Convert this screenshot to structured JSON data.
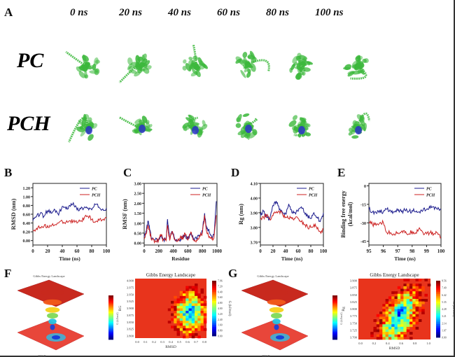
{
  "figure": {
    "panel_labels": {
      "A": "A",
      "B": "B",
      "C": "C",
      "D": "D",
      "E": "E",
      "F": "F",
      "G": "G"
    },
    "time_points": [
      "0 ns",
      "20 ns",
      "40 ns",
      "60 ns",
      "80 ns",
      "100 ns"
    ],
    "rows": [
      "PC",
      "PCH"
    ],
    "colors": {
      "pc": "#1a1a8c",
      "pch": "#cc2222",
      "protein": "#3cb83c",
      "ligand": "#2a2ad0",
      "heat_bg": "#e8341c"
    }
  },
  "chart_data": [
    {
      "id": "B",
      "type": "line",
      "title": "",
      "xlabel": "Time (ns)",
      "ylabel": "RMSD (nm)",
      "xlim": [
        0,
        100
      ],
      "ylim": [
        -0.1,
        1.3
      ],
      "xticks": [
        0,
        20,
        40,
        60,
        80,
        100
      ],
      "yticks": [
        "0.00",
        "0.20",
        "0.40",
        "0.60",
        "0.80",
        "1.00",
        "1.20"
      ],
      "legend": [
        "PC",
        "PCH"
      ],
      "legend_position": "top-right",
      "x": [
        0,
        5,
        10,
        15,
        20,
        25,
        30,
        35,
        40,
        45,
        50,
        55,
        60,
        65,
        70,
        75,
        80,
        85,
        90,
        95,
        100
      ],
      "series": [
        {
          "name": "PC",
          "values": [
            0.45,
            0.55,
            0.62,
            0.55,
            0.68,
            0.62,
            0.7,
            0.58,
            0.78,
            0.72,
            0.8,
            0.86,
            0.7,
            0.72,
            0.76,
            0.74,
            0.7,
            0.82,
            0.76,
            0.72,
            0.74
          ]
        },
        {
          "name": "PCH",
          "values": [
            0.22,
            0.28,
            0.3,
            0.32,
            0.34,
            0.33,
            0.36,
            0.4,
            0.44,
            0.42,
            0.45,
            0.44,
            0.4,
            0.45,
            0.52,
            0.55,
            0.48,
            0.42,
            0.46,
            0.48,
            0.52
          ]
        }
      ]
    },
    {
      "id": "C",
      "type": "line",
      "title": "",
      "xlabel": "Residue",
      "ylabel": "RMSF (nm)",
      "xlim": [
        0,
        1000
      ],
      "ylim": [
        -0.1,
        3.0
      ],
      "xticks": [
        0,
        200,
        400,
        600,
        800,
        1000
      ],
      "yticks": [
        "0.00",
        "0.50",
        "1.00",
        "1.50",
        "2.00",
        "2.50",
        "3.00"
      ],
      "legend": [
        "PC",
        "PCH"
      ],
      "legend_position": "top-right",
      "x": [
        0,
        30,
        50,
        70,
        100,
        150,
        200,
        230,
        260,
        300,
        320,
        350,
        380,
        420,
        460,
        500,
        530,
        560,
        600,
        640,
        680,
        720,
        760,
        800,
        830,
        850,
        870,
        900,
        930,
        960,
        990
      ],
      "series": [
        {
          "name": "PC",
          "values": [
            0.3,
            0.6,
            1.1,
            0.9,
            0.2,
            0.15,
            0.2,
            0.4,
            0.2,
            0.15,
            1.2,
            0.2,
            0.6,
            0.2,
            0.15,
            0.2,
            0.3,
            0.4,
            0.2,
            0.5,
            0.2,
            0.2,
            0.4,
            0.6,
            1.5,
            0.8,
            0.7,
            0.5,
            0.3,
            0.4,
            2.1
          ]
        },
        {
          "name": "PCH",
          "values": [
            0.2,
            0.5,
            0.9,
            0.7,
            0.15,
            0.12,
            0.15,
            0.45,
            0.15,
            0.12,
            0.9,
            0.15,
            0.55,
            0.15,
            0.12,
            0.35,
            0.25,
            0.5,
            0.15,
            0.55,
            0.15,
            0.15,
            0.35,
            0.5,
            1.4,
            0.7,
            0.5,
            0.3,
            0.2,
            0.3,
            1.4
          ]
        }
      ]
    },
    {
      "id": "D",
      "type": "line",
      "title": "",
      "xlabel": "Time (ns)",
      "ylabel": "Rg (nm)",
      "xlim": [
        0,
        100
      ],
      "ylim": [
        3.68,
        4.1
      ],
      "xticks": [
        0,
        20,
        40,
        60,
        80,
        100
      ],
      "yticks": [
        "3.70",
        "3.80",
        "3.90",
        "4.00",
        "4.10"
      ],
      "legend": [
        "PC",
        "PCH"
      ],
      "legend_position": "top-right",
      "x": [
        0,
        5,
        10,
        15,
        20,
        25,
        30,
        35,
        40,
        45,
        50,
        55,
        60,
        65,
        70,
        75,
        80,
        85,
        90,
        95,
        100
      ],
      "series": [
        {
          "name": "PC",
          "values": [
            3.88,
            3.91,
            3.87,
            3.86,
            3.95,
            3.98,
            3.92,
            3.9,
            3.89,
            3.96,
            3.9,
            3.9,
            3.91,
            3.94,
            3.9,
            3.88,
            3.86,
            3.9,
            3.87,
            3.84,
            3.9
          ]
        },
        {
          "name": "PCH",
          "values": [
            3.86,
            3.87,
            3.88,
            3.86,
            3.88,
            3.9,
            3.91,
            3.89,
            3.87,
            3.86,
            3.86,
            3.86,
            3.86,
            3.84,
            3.82,
            3.8,
            3.8,
            3.82,
            3.79,
            3.77,
            3.79
          ]
        }
      ]
    },
    {
      "id": "E",
      "type": "line",
      "title": "",
      "xlabel": "Time (ns)",
      "ylabel": "Binding free energy (kcal/mol)",
      "xlim": [
        95,
        100
      ],
      "ylim": [
        -48,
        2
      ],
      "xticks": [
        95,
        96,
        97,
        98,
        99,
        100
      ],
      "yticks": [
        "0",
        "-15",
        "-30",
        "-45"
      ],
      "legend": [
        "PC",
        "PCH"
      ],
      "legend_position": "top-right",
      "x": [
        95,
        95.25,
        95.5,
        95.75,
        96,
        96.25,
        96.5,
        96.75,
        97,
        97.25,
        97.5,
        97.75,
        98,
        98.25,
        98.5,
        98.75,
        99,
        99.25,
        99.5,
        99.75,
        100
      ],
      "series": [
        {
          "name": "PC",
          "values": [
            -19,
            -21,
            -22,
            -20,
            -21,
            -19,
            -20,
            -21,
            -20,
            -21,
            -20,
            -21,
            -20,
            -21,
            -21,
            -20,
            -19,
            -18,
            -17,
            -19,
            -19
          ]
        },
        {
          "name": "PCH",
          "values": [
            -30,
            -31,
            -32,
            -30,
            -30,
            -38,
            -38,
            -39,
            -38,
            -37,
            -38,
            -39,
            -37,
            -38,
            -34,
            -38,
            -39,
            -38,
            -39,
            -38,
            -42
          ]
        }
      ]
    },
    {
      "id": "F-3d",
      "type": "heatmap",
      "title": "Gibbs Energy Landscape",
      "xlabel": "RMSD",
      "ylabel": "Rg",
      "zlabel": "G (kJ/mol)",
      "note": "3D surface view"
    },
    {
      "id": "F-2d",
      "type": "heatmap",
      "title": "Gibbs Energy Landscape",
      "xlabel": "RMSD",
      "ylabel": "RG",
      "colorbar_label": "G (kJ/mol)",
      "xticks": [
        "0.0",
        "0.1",
        "0.2",
        "0.3",
        "0.4",
        "0.5",
        "0.6",
        "0.7",
        "0.8"
      ],
      "yticks": [
        "3.800",
        "3.825",
        "3.850",
        "3.875",
        "3.900",
        "3.925",
        "3.950",
        "3.975",
        "4.000"
      ],
      "colorbar_ticks": [
        "0.00",
        "0.80",
        "1.60",
        "2.40",
        "3.20",
        "4.00",
        "4.80",
        "5.60",
        "6.40",
        "7.20",
        "7.96"
      ]
    },
    {
      "id": "G-3d",
      "type": "heatmap",
      "title": "Gibbs Energy Landscape",
      "xlabel": "RMSD",
      "ylabel": "Rg",
      "zlabel": "G (kJ/mol)",
      "note": "3D surface view"
    },
    {
      "id": "G-2d",
      "type": "heatmap",
      "title": "Gibbs Energy Landscape",
      "xlabel": "RMSD",
      "ylabel": "Rg",
      "colorbar_label": "G (kJ/mol)",
      "xticks": [
        "0.0",
        "0.2",
        "0.4",
        "0.6",
        "0.8",
        "1.0"
      ],
      "yticks": [
        "3.700",
        "3.725",
        "3.750",
        "3.775",
        "3.800",
        "3.825",
        "3.850",
        "3.875",
        "3.900"
      ],
      "colorbar_ticks": [
        "0.00",
        "1.07",
        "2.14",
        "3.21",
        "4.28",
        "5.35",
        "6.42",
        "7.49",
        "8.56"
      ]
    }
  ]
}
